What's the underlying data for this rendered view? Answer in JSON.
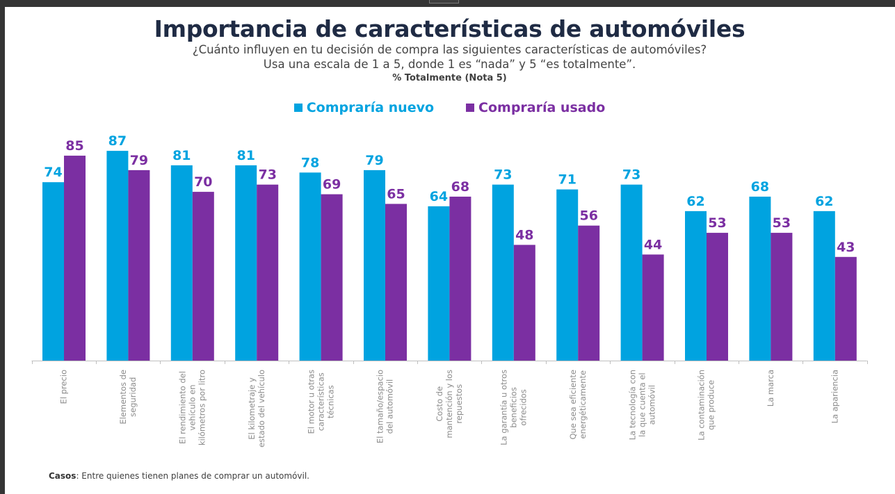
{
  "chart_data": {
    "type": "bar",
    "title": "Importancia de características de automóviles",
    "subtitle": [
      "¿Cuánto influyen en tu decisión de compra las siguientes características de automóviles?",
      "Usa una escala de 1 a 5, donde 1 es “nada” y 5 “es totalmente”."
    ],
    "note": "% Totalmente (Nota 5)",
    "xlabel": "",
    "ylabel": "",
    "ylim": [
      0,
      100
    ],
    "grid": false,
    "legend_position": "top-center",
    "categories": [
      [
        "El precio"
      ],
      [
        "Elementos de",
        "seguridad"
      ],
      [
        "El rendimiento del",
        "vehículo en",
        "kilómetros por litro"
      ],
      [
        "El kilometraje y",
        "estado del vehículo"
      ],
      [
        "El motor u otras",
        "características",
        "técnicas"
      ],
      [
        "El tamaño/espacio",
        "del automóvil"
      ],
      [
        "Costo de",
        "mantención y los",
        "repuestos"
      ],
      [
        "La garantía u otros",
        "beneficios",
        "ofrecidos"
      ],
      [
        "Que sea eficiente",
        "energéticamente"
      ],
      [
        "La tecnología con",
        "la que cuenta el",
        "automóvil"
      ],
      [
        "La contaminación",
        "que produce"
      ],
      [
        "La marca"
      ],
      [
        "La apariencia"
      ]
    ],
    "series": [
      {
        "name": "Compraría nuevo",
        "color": "#00a3e0",
        "values": [
          74,
          87,
          81,
          81,
          78,
          79,
          64,
          73,
          71,
          73,
          62,
          68,
          62
        ]
      },
      {
        "name": "Compraría usado",
        "color": "#7b2fa2",
        "values": [
          85,
          79,
          70,
          73,
          69,
          65,
          68,
          48,
          56,
          44,
          53,
          53,
          43
        ]
      }
    ]
  },
  "footer": {
    "label": "Casos",
    "text": ": Entre quienes tienen planes de comprar un automóvil."
  }
}
